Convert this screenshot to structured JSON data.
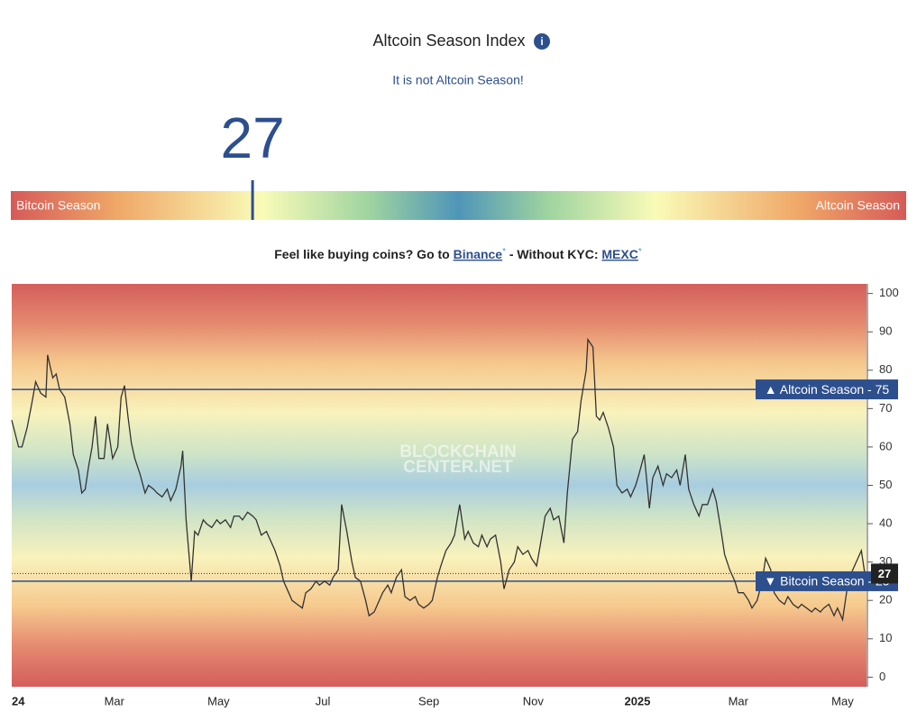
{
  "header": {
    "title": "Altcoin Season Index",
    "subtitle": "It is not Altcoin Season!"
  },
  "gauge": {
    "value": 27,
    "range": [
      0,
      100
    ],
    "min_label": "Bitcoin Season",
    "max_label": "Altcoin Season"
  },
  "promo": {
    "lead": "Feel like buying coins? Go to",
    "link1": "Binance",
    "star1": "*",
    "middle": "- Without KYC:",
    "link2": "MEXC",
    "star2": "*"
  },
  "chart_data": {
    "type": "line",
    "watermark": [
      "BL⬡CKCHAIN",
      "CENTER.NET"
    ],
    "x": [
      0,
      4,
      6,
      9,
      12,
      14,
      17,
      20,
      21,
      24,
      26,
      28,
      31,
      34,
      36,
      39,
      41,
      43,
      45,
      47,
      49,
      51,
      54,
      56,
      59,
      62,
      64,
      66,
      68,
      70,
      72,
      75,
      78,
      80,
      83,
      85,
      88,
      91,
      93,
      96,
      99,
      100,
      102,
      105,
      107,
      109,
      112,
      114,
      117,
      120,
      122,
      125,
      128,
      130,
      133,
      135,
      138,
      141,
      143,
      146,
      149,
      151,
      154,
      157,
      159,
      162,
      164,
      167,
      170,
      172,
      175,
      178,
      180,
      183,
      186,
      188,
      191,
      193,
      196,
      199,
      201,
      204,
      207,
      209,
      212,
      215,
      217,
      220,
      222,
      225,
      228,
      230,
      233,
      236,
      238,
      241,
      244,
      246,
      249,
      251,
      254,
      257,
      259,
      262,
      265,
      267,
      270,
      273,
      275,
      278,
      280,
      283,
      286,
      288,
      291,
      294,
      296,
      299,
      302,
      304,
      307,
      309,
      312,
      315,
      317,
      320,
      323,
      325,
      328,
      331,
      333,
      336,
      337,
      340,
      342,
      344,
      346,
      349,
      352,
      354,
      357,
      360,
      362,
      365,
      367,
      370,
      373,
      375,
      378,
      381,
      383,
      386,
      389,
      391,
      394,
      396,
      399,
      402,
      404,
      407,
      410,
      412,
      415,
      417,
      420,
      423,
      425,
      428,
      431,
      433,
      436,
      439,
      441,
      444,
      446,
      449,
      452,
      454,
      457,
      460,
      462,
      465,
      468,
      470,
      473,
      475,
      478,
      481,
      483,
      486,
      489,
      491,
      494,
      497,
      499
    ],
    "series": [
      {
        "color": "#333333",
        "values": [
          67,
          60,
          60,
          65,
          72,
          77,
          74,
          73,
          84,
          78,
          79,
          75,
          73,
          66,
          58,
          54,
          48,
          49,
          55,
          60,
          68,
          57,
          57,
          66,
          57,
          60,
          73,
          76,
          68,
          61,
          57,
          53,
          48,
          50,
          49,
          48,
          47,
          49,
          46,
          49,
          55,
          59,
          41,
          25,
          38,
          37,
          41,
          40,
          39,
          41,
          40,
          41,
          39,
          42,
          42,
          41,
          43,
          42,
          41,
          37,
          38,
          36,
          33,
          29,
          25,
          22,
          20,
          19,
          18,
          22,
          23,
          25,
          24,
          25,
          24,
          26,
          28,
          45,
          38,
          30,
          26,
          25,
          20,
          16,
          17,
          20,
          22,
          24,
          22,
          26,
          28,
          21,
          20,
          21,
          19,
          18,
          19,
          20,
          26,
          29,
          33,
          35,
          37,
          45,
          36,
          38,
          35,
          34,
          37,
          34,
          36,
          37,
          30,
          23,
          28,
          30,
          34,
          32,
          33,
          31,
          29,
          34,
          42,
          44,
          41,
          42,
          35,
          48,
          62,
          64,
          72,
          80,
          88,
          86,
          68,
          67,
          69,
          65,
          60,
          50,
          48,
          49,
          47,
          50,
          53,
          58,
          44,
          52,
          55,
          50,
          53,
          52,
          54,
          50,
          58,
          49,
          45,
          42,
          45,
          45,
          49,
          46,
          38,
          32,
          28,
          25,
          22,
          22,
          20,
          18,
          20,
          25,
          31,
          28,
          22,
          20,
          19,
          21,
          19,
          18,
          19,
          18,
          17,
          18,
          17,
          18,
          19,
          16,
          18,
          15,
          24,
          27,
          30,
          33,
          27
        ]
      }
    ],
    "xlim": [
      0,
      500
    ],
    "xticks": [
      {
        "value": 0,
        "label": "24"
      },
      {
        "value": 60,
        "label": "Mar"
      },
      {
        "value": 121,
        "label": "May"
      },
      {
        "value": 182,
        "label": "Jul"
      },
      {
        "value": 244,
        "label": "Sep"
      },
      {
        "value": 305,
        "label": "Nov"
      },
      {
        "value": 366,
        "label": "2025"
      },
      {
        "value": 425,
        "label": "Mar"
      },
      {
        "value": 486,
        "label": "May"
      }
    ],
    "ylim": [
      -2.5,
      102.5
    ],
    "yticks": [
      0,
      10,
      20,
      30,
      40,
      50,
      60,
      70,
      80,
      90,
      100
    ],
    "reference_lines": [
      {
        "value": 75,
        "label": "▲ Altcoin Season - 75"
      },
      {
        "value": 25,
        "label": "▼ Bitcoin Season - 25"
      }
    ],
    "current": {
      "value": 27,
      "label": "27"
    }
  }
}
